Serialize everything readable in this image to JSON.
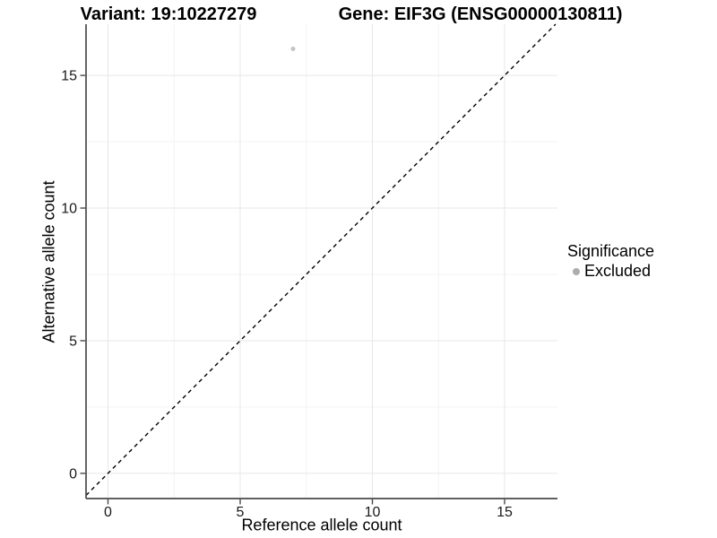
{
  "chart_data": {
    "type": "scatter",
    "titles": {
      "variant": "Variant: 19:10227279",
      "gene": "Gene: EIF3G (ENSG00000130811)"
    },
    "xlabel": "Reference allele count",
    "ylabel": "Alternative allele count",
    "x_ticks": [
      0,
      5,
      10,
      15
    ],
    "y_ticks": [
      0,
      5,
      10,
      15
    ],
    "x_minor": [
      2.5,
      7.5,
      12.5
    ],
    "y_minor": [
      2.5,
      7.5,
      12.5
    ],
    "xlim": [
      -0.83,
      17.0
    ],
    "ylim": [
      -0.95,
      16.93
    ],
    "grid": true,
    "points": [
      {
        "x": 7,
        "y": 16,
        "series": "Excluded"
      }
    ],
    "reference_line": {
      "slope": 1,
      "intercept": 0,
      "linestyle": "dashed",
      "color": "#000000"
    },
    "legend": {
      "title": "Significance",
      "position": "right",
      "items": [
        {
          "label": "Excluded",
          "color": "#adadad"
        }
      ]
    },
    "colors": {
      "point": "#c3c3c3",
      "grid_major": "#e7e7e7",
      "grid_minor": "#f3f3f3",
      "axis": "#4a4a4a",
      "text": "#1a1a1a"
    }
  }
}
